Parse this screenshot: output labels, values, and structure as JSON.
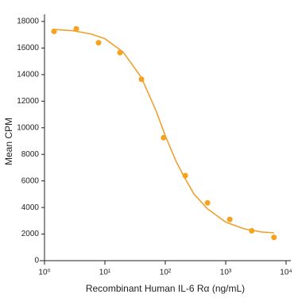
{
  "chart_data": {
    "type": "scatter",
    "xlabel": "Recombinant Human IL-6 Rα (ng/mL)",
    "ylabel": "Mean CPM",
    "xscale": "log",
    "xlim": [
      1,
      10000
    ],
    "xticks": [
      {
        "value": 1,
        "label": "10⁰"
      },
      {
        "value": 10,
        "label": "10¹"
      },
      {
        "value": 100,
        "label": "10²"
      },
      {
        "value": 1000,
        "label": "10³"
      },
      {
        "value": 10000,
        "label": "10⁴"
      }
    ],
    "ylim": [
      0,
      18000
    ],
    "yticks": [
      0,
      2000,
      4000,
      6000,
      8000,
      10000,
      12000,
      14000,
      16000,
      18000
    ],
    "series": [
      {
        "mode": "markers",
        "color": "#f5a21f",
        "x": [
          1.44,
          3.36,
          7.85,
          17.8,
          40.3,
          93.6,
          214,
          500,
          1170,
          2700,
          6300
        ],
        "values": [
          17250,
          17450,
          16400,
          15650,
          13650,
          9250,
          6400,
          4350,
          3100,
          2250,
          1750
        ]
      },
      {
        "mode": "line",
        "color": "#f0a030",
        "x": [
          1.44,
          3,
          6,
          10,
          20,
          40,
          70,
          100,
          150,
          200,
          300,
          500,
          1000,
          2000,
          4000,
          6300
        ],
        "values": [
          17400,
          17300,
          17050,
          16700,
          15700,
          13800,
          11300,
          9400,
          7500,
          6400,
          5000,
          3900,
          2900,
          2400,
          2150,
          2100
        ]
      }
    ]
  }
}
